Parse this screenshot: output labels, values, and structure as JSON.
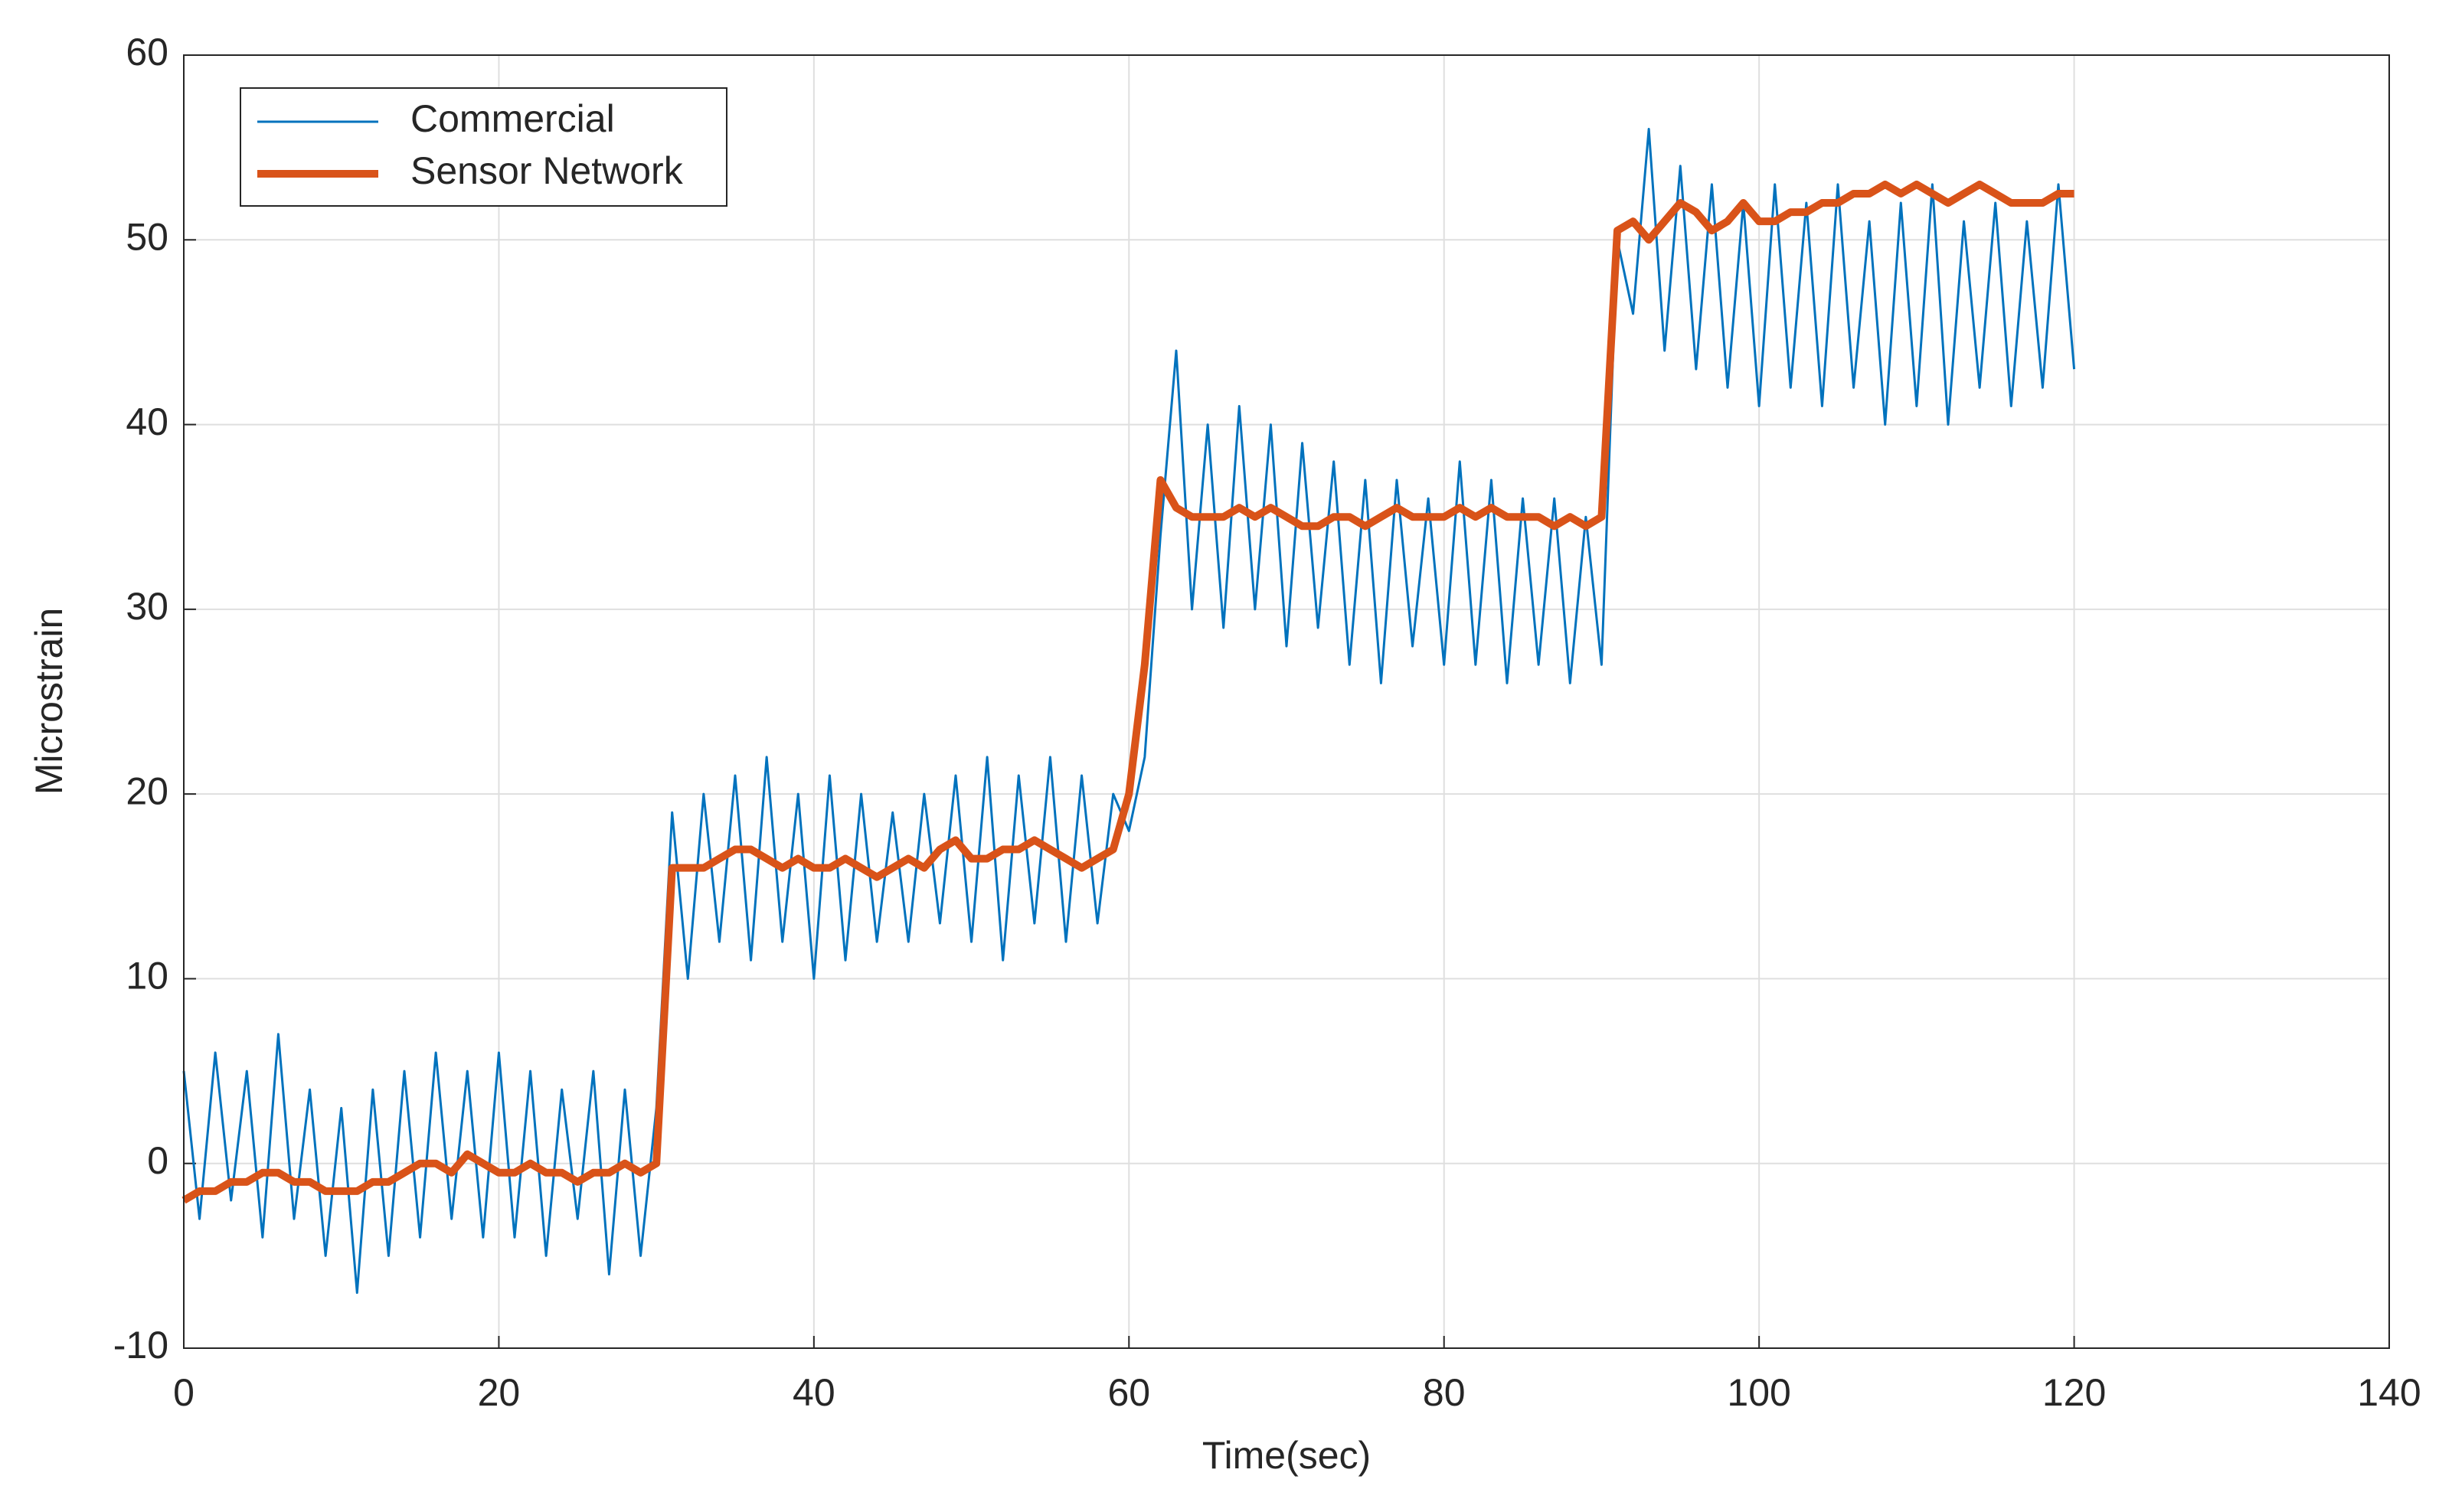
{
  "chart_data": {
    "type": "line",
    "xlabel": "Time(sec)",
    "ylabel": "Microstrain",
    "xlim": [
      0,
      140
    ],
    "xticks": [
      0,
      20,
      40,
      60,
      80,
      100,
      120,
      140
    ],
    "ylim": [
      -10,
      60
    ],
    "yticks": [
      -10,
      0,
      10,
      20,
      30,
      40,
      50,
      60
    ],
    "grid": true,
    "legend": "upper left",
    "series": [
      {
        "name": "Commercial",
        "color": "#0072bd",
        "x": [
          0,
          1,
          2,
          3,
          4,
          5,
          6,
          7,
          8,
          9,
          10,
          11,
          12,
          13,
          14,
          15,
          16,
          17,
          18,
          19,
          20,
          21,
          22,
          23,
          24,
          25,
          26,
          27,
          28,
          29,
          30,
          31,
          32,
          33,
          34,
          35,
          36,
          37,
          38,
          39,
          40,
          41,
          42,
          43,
          44,
          45,
          46,
          47,
          48,
          49,
          50,
          51,
          52,
          53,
          54,
          55,
          56,
          57,
          58,
          59,
          60,
          61,
          62,
          63,
          64,
          65,
          66,
          67,
          68,
          69,
          70,
          71,
          72,
          73,
          74,
          75,
          76,
          77,
          78,
          79,
          80,
          81,
          82,
          83,
          84,
          85,
          86,
          87,
          88,
          89,
          90,
          91,
          92,
          93,
          94,
          95,
          96,
          97,
          98,
          99,
          100,
          101,
          102,
          103,
          104,
          105,
          106,
          107,
          108,
          109,
          110,
          111,
          112,
          113,
          114,
          115,
          116,
          117,
          118,
          119,
          120
        ],
        "values": [
          5,
          -3,
          6,
          -2,
          5,
          -4,
          7,
          -3,
          4,
          -5,
          3,
          -7,
          4,
          -5,
          5,
          -4,
          6,
          -3,
          5,
          -4,
          6,
          -4,
          5,
          -5,
          4,
          -3,
          5,
          -6,
          4,
          -5,
          3,
          19,
          10,
          20,
          12,
          21,
          11,
          22,
          12,
          20,
          10,
          21,
          11,
          20,
          12,
          19,
          12,
          20,
          13,
          21,
          12,
          22,
          11,
          21,
          13,
          22,
          12,
          21,
          13,
          20,
          18,
          22,
          34,
          44,
          30,
          40,
          29,
          41,
          30,
          40,
          28,
          39,
          29,
          38,
          27,
          37,
          26,
          37,
          28,
          36,
          27,
          38,
          27,
          37,
          26,
          36,
          27,
          36,
          26,
          35,
          27,
          50,
          46,
          56,
          44,
          54,
          43,
          53,
          42,
          52,
          41,
          53,
          42,
          52,
          41,
          53,
          42,
          51,
          40,
          52,
          41,
          53,
          40,
          51,
          42,
          52,
          41,
          51,
          42,
          53,
          43
        ]
      },
      {
        "name": "Sensor Network",
        "color": "#d95319",
        "x": [
          0,
          1,
          2,
          3,
          4,
          5,
          6,
          7,
          8,
          9,
          10,
          11,
          12,
          13,
          14,
          15,
          16,
          17,
          18,
          19,
          20,
          21,
          22,
          23,
          24,
          25,
          26,
          27,
          28,
          29,
          30,
          31,
          32,
          33,
          34,
          35,
          36,
          37,
          38,
          39,
          40,
          41,
          42,
          43,
          44,
          45,
          46,
          47,
          48,
          49,
          50,
          51,
          52,
          53,
          54,
          55,
          56,
          57,
          58,
          59,
          60,
          61,
          62,
          63,
          64,
          65,
          66,
          67,
          68,
          69,
          70,
          71,
          72,
          73,
          74,
          75,
          76,
          77,
          78,
          79,
          80,
          81,
          82,
          83,
          84,
          85,
          86,
          87,
          88,
          89,
          90,
          91,
          92,
          93,
          94,
          95,
          96,
          97,
          98,
          99,
          100,
          101,
          102,
          103,
          104,
          105,
          106,
          107,
          108,
          109,
          110,
          111,
          112,
          113,
          114,
          115,
          116,
          117,
          118,
          119,
          120
        ],
        "values": [
          -2,
          -1.5,
          -1.5,
          -1,
          -1,
          -0.5,
          -0.5,
          -1,
          -1,
          -1.5,
          -1.5,
          -1.5,
          -1,
          -1,
          -0.5,
          0,
          0,
          -0.5,
          0.5,
          0,
          -0.5,
          -0.5,
          0,
          -0.5,
          -0.5,
          -1,
          -0.5,
          -0.5,
          0,
          -0.5,
          0,
          16,
          16,
          16,
          16.5,
          17,
          17,
          16.5,
          16,
          16.5,
          16,
          16,
          16.5,
          16,
          15.5,
          16,
          16.5,
          16,
          17,
          17.5,
          16.5,
          16.5,
          17,
          17,
          17.5,
          17,
          16.5,
          16,
          16.5,
          17,
          20,
          27,
          37,
          35.5,
          35,
          35,
          35,
          35.5,
          35,
          35.5,
          35,
          34.5,
          34.5,
          35,
          35,
          34.5,
          35,
          35.5,
          35,
          35,
          35,
          35.5,
          35,
          35.5,
          35,
          35,
          35,
          34.5,
          35,
          34.5,
          35,
          50.5,
          51,
          50,
          51,
          52,
          51.5,
          50.5,
          51,
          52,
          51,
          51,
          51.5,
          51.5,
          52,
          52,
          52.5,
          52.5,
          53,
          52.5,
          53,
          52.5,
          52,
          52.5,
          53,
          52.5,
          52,
          52,
          52,
          52.5,
          52.5
        ]
      }
    ]
  }
}
